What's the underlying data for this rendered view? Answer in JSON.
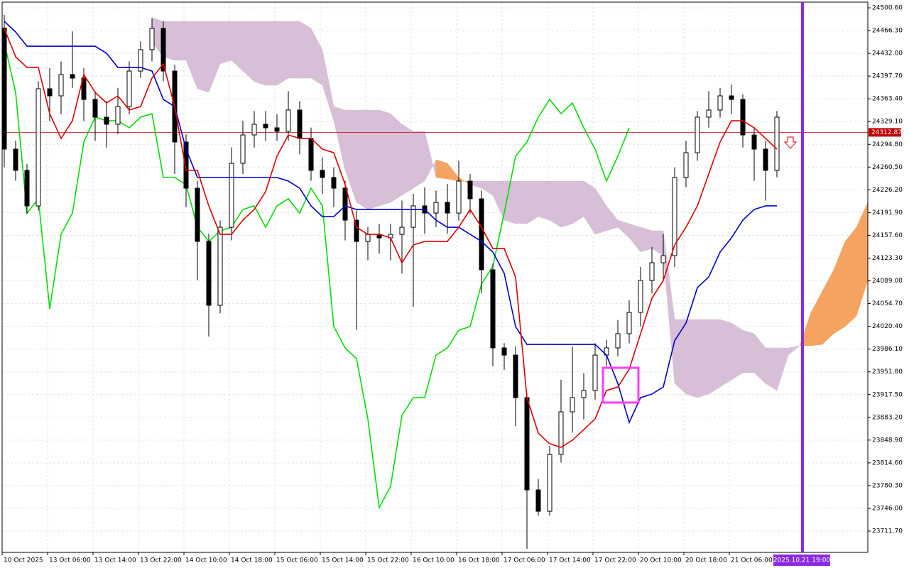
{
  "chart_data": {
    "type": "candlestick",
    "ylim": [
      23679.6,
      24509.2
    ],
    "yticks": [
      {
        "value": 24500.6,
        "label": "24500.60"
      },
      {
        "value": 24466.3,
        "label": "24466.30"
      },
      {
        "value": 24432.0,
        "label": "24432.00"
      },
      {
        "value": 24397.7,
        "label": "24397.70"
      },
      {
        "value": 24363.4,
        "label": "24363.40"
      },
      {
        "value": 24329.1,
        "label": "24329.10"
      },
      {
        "value": 24294.8,
        "label": "24294.80"
      },
      {
        "value": 24260.5,
        "label": "24260.50"
      },
      {
        "value": 24226.2,
        "label": "24226.20"
      },
      {
        "value": 24191.9,
        "label": "24191.90"
      },
      {
        "value": 24157.6,
        "label": "24157.60"
      },
      {
        "value": 24123.3,
        "label": "24123.30"
      },
      {
        "value": 24089.0,
        "label": "24089.00"
      },
      {
        "value": 24054.7,
        "label": "24054.70"
      },
      {
        "value": 24020.4,
        "label": "24020.40"
      },
      {
        "value": 23986.1,
        "label": "23986.10"
      },
      {
        "value": 23951.8,
        "label": "23951.80"
      },
      {
        "value": 23917.5,
        "label": "23917.50"
      },
      {
        "value": 23883.2,
        "label": "23883.20"
      },
      {
        "value": 23848.9,
        "label": "23848.90"
      },
      {
        "value": 23814.6,
        "label": "23814.60"
      },
      {
        "value": 23780.3,
        "label": "23780.30"
      },
      {
        "value": 23746.0,
        "label": "23746.00"
      },
      {
        "value": 23711.7,
        "label": "23711.70"
      }
    ],
    "x_labels": [
      "10 Oct 2025",
      "13 Oct 06:00",
      "13 Oct 14:00",
      "13 Oct 22:00",
      "14 Oct 10:00",
      "14 Oct 18:00",
      "15 Oct 06:00",
      "15 Oct 14:00",
      "15 Oct 22:00",
      "16 Oct 10:00",
      "16 Oct 18:00",
      "17 Oct 06:00",
      "17 Oct 14:00",
      "17 Oct 22:00",
      "20 Oct 10:00",
      "20 Oct 18:00",
      "21 Oct 06:00"
    ],
    "grid": true,
    "up_color": "#ffffff",
    "down_color": "#000000",
    "open": [
      24470.0,
      24287.6,
      24255.5,
      24202.0,
      24378.6,
      24367.9,
      24400.0,
      24394.6,
      24362.5,
      24335.8,
      24325.1,
      24351.8,
      24405.3,
      24437.5,
      24469.6,
      24405.3,
      24298.3,
      24228.7,
      24148.4,
      24052.1,
      24169.8,
      24266.2,
      24309.0,
      24325.1,
      24319.7,
      24314.4,
      24346.5,
      24303.7,
      24255.5,
      24244.8,
      24228.7,
      24180.5,
      24148.4,
      24159.1,
      24153.8,
      24159.1,
      24169.8,
      24202.0,
      24191.2,
      24207.3,
      24191.2,
      24239.4,
      24212.7,
      24105.6,
      23987.9,
      23977.1,
      23912.9,
      23773.8,
      23741.6,
      23827.3,
      23891.5,
      23912.9,
      23923.6,
      23977.1,
      23987.9,
      24009.3,
      24041.4,
      24089.6,
      24116.3,
      24127.0,
      24244.8,
      24282.2,
      24335.8,
      24346.5,
      24367.9,
      24362.5,
      24309.0,
      24287.6,
      24255.5
    ],
    "high": [
      24490,
      24300,
      24265,
      24390,
      24410,
      24420,
      24465,
      24410,
      24375,
      24360,
      24380,
      24420,
      24450,
      24485,
      24480,
      24415,
      24310,
      24240,
      24160,
      24180,
      24290,
      24330,
      24345,
      24345,
      24340,
      24375,
      24360,
      24320,
      24275,
      24260,
      24240,
      24195,
      24170,
      24175,
      24175,
      24210,
      24220,
      24230,
      24225,
      24235,
      24270,
      24250,
      24225,
      24115,
      23995,
      23990,
      23920,
      23790,
      23840,
      23940,
      23990,
      23950,
      23995,
      24000,
      24030,
      24060,
      24110,
      24140,
      24160,
      24260,
      24300,
      24345,
      24375,
      24380,
      24385,
      24370,
      24320,
      24300,
      24345
    ],
    "low": [
      24260,
      24240,
      24190,
      24195,
      24330,
      24340,
      24380,
      24330,
      24300,
      24290,
      24310,
      24340,
      24395,
      24420,
      24390,
      24250,
      24200,
      24090,
      24005,
      24040,
      24150,
      24250,
      24290,
      24300,
      24300,
      24300,
      24280,
      24240,
      24220,
      24200,
      24150,
      24015,
      24120,
      24130,
      24120,
      24100,
      24050,
      24160,
      24170,
      24160,
      24180,
      24190,
      24070,
      23960,
      23955,
      23870,
      23685,
      23735,
      23735,
      23815,
      23860,
      23880,
      23910,
      23960,
      23975,
      23995,
      24020,
      24070,
      24090,
      24110,
      24230,
      24270,
      24320,
      24335,
      24340,
      24290,
      24240,
      24210,
      24245
    ],
    "close": [
      24287.6,
      24255.5,
      24202.0,
      24378.6,
      24367.9,
      24400.0,
      24394.6,
      24362.5,
      24335.8,
      24325.1,
      24351.8,
      24405.3,
      24437.5,
      24469.6,
      24405.3,
      24298.3,
      24228.7,
      24148.4,
      24052.1,
      24169.8,
      24266.2,
      24309.0,
      24325.1,
      24319.7,
      24314.4,
      24346.5,
      24303.7,
      24255.5,
      24244.8,
      24228.7,
      24180.5,
      24148.4,
      24159.1,
      24153.8,
      24159.1,
      24169.8,
      24202.0,
      24191.2,
      24207.3,
      24191.2,
      24239.4,
      24212.7,
      24105.6,
      23987.9,
      23977.1,
      23912.9,
      23773.8,
      23741.6,
      23827.3,
      23891.5,
      23912.9,
      23923.6,
      23977.1,
      23987.9,
      24009.3,
      24041.4,
      24089.6,
      24116.3,
      24127.0,
      24244.8,
      24282.2,
      24335.8,
      24346.5,
      24367.9,
      24362.5,
      24309.0,
      24287.6,
      24255.5,
      24335.8
    ],
    "tenkan": {
      "color": "#e00000",
      "values": [
        24469.6,
        24426.8,
        24410.7,
        24410.7,
        24341.1,
        24303.7,
        24330.4,
        24400.0,
        24373.2,
        24357.2,
        24367.9,
        24346.5,
        24351.8,
        24394.6,
        24416.1,
        24351.8,
        24255.5,
        24255.5,
        24202.0,
        24159.1,
        24159.1,
        24180.5,
        24196.6,
        24223.4,
        24276.9,
        24309.0,
        24303.7,
        24303.7,
        24287.6,
        24282.2,
        24234.1,
        24169.8,
        24159.1,
        24159.1,
        24153.8,
        24116.3,
        24143.1,
        24148.4,
        24148.4,
        24148.4,
        24169.8,
        24196.6,
        24169.8,
        24137.7,
        24137.7,
        24094.9,
        23912.9,
        23859.4,
        23843.3,
        23838.0,
        23848.7,
        23864.7,
        23880.8,
        23923.6,
        23929.0,
        23955.7,
        24009.3,
        24062.8,
        24089.6,
        24143.1,
        24169.8,
        24202.0,
        24250.1,
        24298.3,
        24330.4,
        24330.4,
        24319.7,
        24303.7,
        24287.6,
        null,
        null,
        null,
        null,
        null,
        null,
        null,
        null
      ]
    },
    "kijun": {
      "color": "#0000cc",
      "values": [
        24480.3,
        24464.2,
        24442.8,
        24442.8,
        24442.8,
        24442.8,
        24442.8,
        24442.8,
        24442.8,
        24432.1,
        24410.7,
        24410.7,
        24410.7,
        24405.3,
        24362.5,
        24351.8,
        24287.6,
        24244.8,
        24244.8,
        24244.8,
        24244.8,
        24244.8,
        24244.8,
        24244.8,
        24244.8,
        24239.4,
        24228.7,
        24202.0,
        24185.9,
        24185.9,
        24202.0,
        24196.6,
        24196.6,
        24196.6,
        24196.6,
        24196.6,
        24196.6,
        24196.6,
        24180.5,
        24169.8,
        24169.8,
        24159.1,
        24148.4,
        24132.4,
        24100.3,
        24020.0,
        23993.2,
        23993.2,
        23993.2,
        23993.2,
        23993.2,
        23993.2,
        23993.2,
        23977.1,
        23934.3,
        23875.5,
        23912.9,
        23918.3,
        23929.0,
        23998.6,
        24025.3,
        24078.8,
        24094.9,
        24132.4,
        24153.8,
        24180.5,
        24196.6,
        24202.0,
        24202.0,
        null,
        null,
        null,
        null,
        null,
        null,
        null,
        null
      ]
    },
    "chikou": {
      "color": "#00e000",
      "values": [
        24448.2,
        24373.2,
        24191.2,
        24212.7,
        24046.7,
        24159.1,
        24191.2,
        24298.3,
        24335.8,
        24330.4,
        24330.4,
        24319.7,
        24335.8,
        24341.1,
        24244.8,
        24244.8,
        24234.1,
        24169.8,
        24148.4,
        24164.5,
        24169.8,
        24196.6,
        24202.0,
        24169.8,
        24202.0,
        24212.7,
        24191.2,
        24228.7,
        24202.0,
        24020.0,
        23987.9,
        23971.8,
        23880.8,
        23747.0,
        23779.1,
        23886.2,
        23912.9,
        23912.9,
        23977.1,
        23987.9,
        24014.6,
        24020.0,
        24084.2,
        24111.0,
        24191.2,
        24276.9,
        24298.3,
        24335.8,
        24362.5,
        24341.1,
        24357.2,
        24319.7,
        24287.6,
        24239.4,
        24276.9,
        24319.7,
        null,
        null,
        null,
        null,
        null,
        null,
        null,
        null,
        null,
        null,
        null,
        null,
        null,
        null,
        null,
        null,
        null,
        null,
        null,
        null,
        null
      ]
    },
    "cloud": {
      "bull_color": "#f4a460",
      "bear_color": "#d8bfd8",
      "span_a": [
        null,
        null,
        null,
        null,
        null,
        null,
        null,
        null,
        null,
        null,
        null,
        null,
        null,
        24448.2,
        24426.8,
        24421.4,
        24421.4,
        24378.6,
        24373.2,
        24416.1,
        24421.4,
        24405.3,
        24389.3,
        24383.9,
        24383.9,
        24394.6,
        24394.6,
        24394.6,
        24383.9,
        24330.4,
        24255.5,
        24207.3,
        24196.6,
        24202.0,
        24207.3,
        24218.0,
        24228.7,
        24239.4,
        24271.5,
        24266.2,
        24244.8,
        24234.1,
        24228.7,
        24218.0,
        24180.5,
        24175.2,
        24175.2,
        24185.9,
        24180.5,
        24169.8,
        24175.2,
        24185.9,
        24159.1,
        24164.5,
        24169.8,
        24153.8,
        24132.4,
        24137.7,
        24127.0,
        23934.3,
        23918.3,
        23912.9,
        23918.3,
        23929.0,
        23939.7,
        23950.4,
        23950.4,
        23934.3,
        23923.6,
        23977.1,
        23991.1,
        24041.4,
        24073.5,
        24105.6,
        24148.4,
        24169.8,
        24207.3
      ],
      "span_b": [
        null,
        null,
        null,
        null,
        null,
        null,
        null,
        null,
        null,
        null,
        null,
        null,
        null,
        24485.6,
        24480.3,
        24480.3,
        24480.3,
        24480.3,
        24480.3,
        24480.3,
        24480.3,
        24480.3,
        24480.3,
        24480.3,
        24480.3,
        24480.3,
        24480.3,
        24469.6,
        24437.5,
        24351.8,
        24346.5,
        24346.5,
        24346.5,
        24346.5,
        24341.1,
        24325.1,
        24314.4,
        24314.4,
        24244.8,
        24242.6,
        24239.4,
        24239.4,
        24239.4,
        24239.4,
        24239.4,
        24239.4,
        24239.4,
        24239.4,
        24239.4,
        24239.4,
        24239.4,
        24239.4,
        24228.7,
        24202.0,
        24180.5,
        24175.2,
        24169.8,
        24164.5,
        24164.5,
        24030.7,
        24030.7,
        24030.7,
        24030.7,
        24030.7,
        24025.3,
        24014.6,
        24009.3,
        23987.9,
        23987.9,
        23987.9,
        23991.1,
        23991.1,
        23993.2,
        24009.3,
        24020.0,
        24036.0,
        24089.6
      ]
    },
    "bid": 24312.87,
    "bid_color": "#c00000",
    "time_marker": "2025.10.21 19:00",
    "time_marker_color": "#8a2be2"
  }
}
